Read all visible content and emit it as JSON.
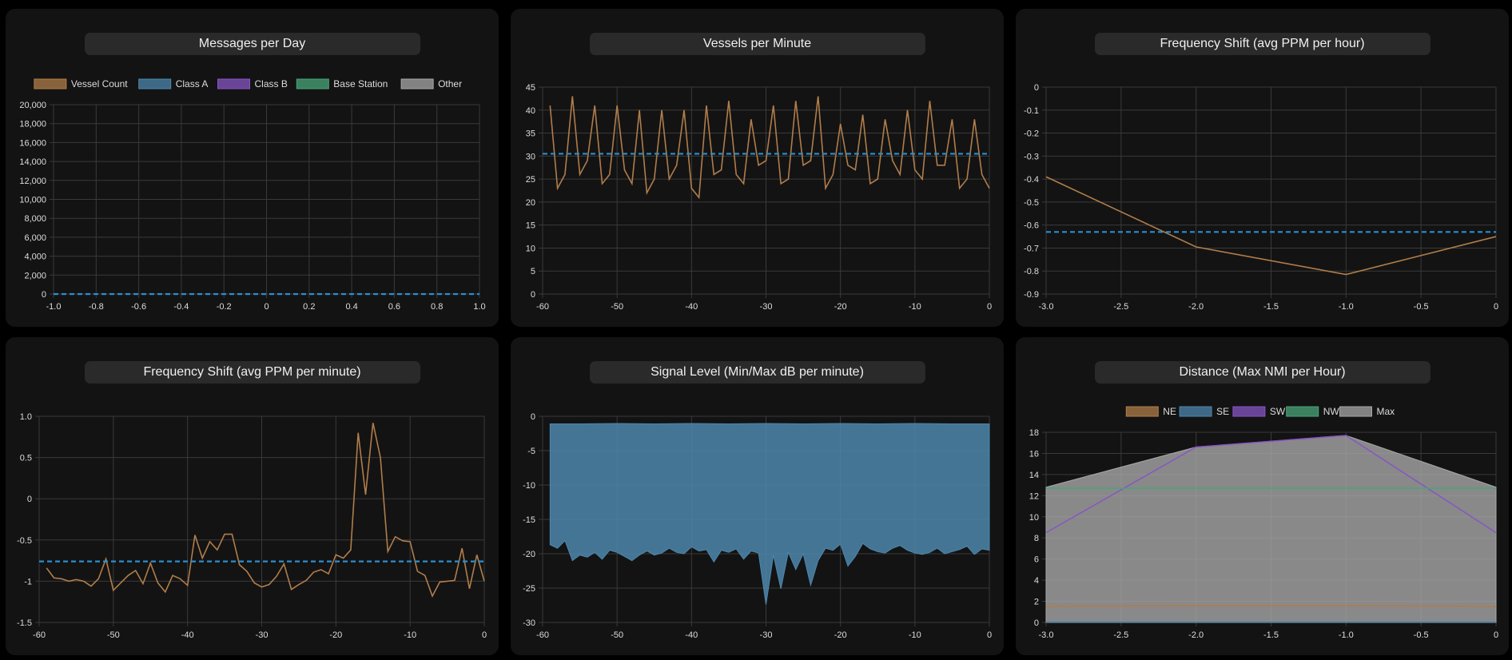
{
  "colors": {
    "bg": "#000000",
    "card": "#131313",
    "pill": "#2a2a2a",
    "grid": "#3a3a3a",
    "axis": "#555555",
    "tick": "#dddddd",
    "orange": "#b07d4a",
    "blue": "#4d87ad",
    "purple": "#8855c4",
    "green": "#4aa57a",
    "grey": "#a8a8a8",
    "dash": "#2a8fd0"
  },
  "charts": [
    {
      "title": "Messages per Day",
      "chart_data": {
        "type": "line",
        "legend": {
          "position": "top",
          "entries": [
            {
              "label": "Vessel Count",
              "color": "#b07d4a"
            },
            {
              "label": "Class A",
              "color": "#4d87ad"
            },
            {
              "label": "Class B",
              "color": "#8855c4"
            },
            {
              "label": "Base Station",
              "color": "#4aa57a"
            },
            {
              "label": "Other",
              "color": "#a8a8a8"
            }
          ]
        },
        "xlim": [
          -1.0,
          1.0
        ],
        "xticks": [
          "-1.0",
          "-0.8",
          "-0.6",
          "-0.4",
          "-0.2",
          "0",
          "0.2",
          "0.4",
          "0.6",
          "0.8",
          "1.0"
        ],
        "ylim": [
          0,
          20000
        ],
        "yticks": [
          "0",
          "2,000",
          "4,000",
          "6,000",
          "8,000",
          "10,000",
          "12,000",
          "14,000",
          "16,000",
          "18,000",
          "20,000"
        ],
        "average": 0,
        "series": []
      }
    },
    {
      "title": "Vessels per Minute",
      "chart_data": {
        "type": "line",
        "xlim": [
          -60,
          0
        ],
        "xticks": [
          "-60",
          "-50",
          "-40",
          "-30",
          "-20",
          "-10",
          "0"
        ],
        "ylim": [
          0,
          45
        ],
        "yticks": [
          "0",
          "5",
          "10",
          "15",
          "20",
          "25",
          "30",
          "35",
          "40",
          "45"
        ],
        "average": 30.5,
        "series": [
          {
            "color": "#b07d4a",
            "x": [
              -59,
              -58,
              -57,
              -56,
              -55,
              -54,
              -53,
              -52,
              -51,
              -50,
              -49,
              -48,
              -47,
              -46,
              -45,
              -44,
              -43,
              -42,
              -41,
              -40,
              -39,
              -38,
              -37,
              -36,
              -35,
              -34,
              -33,
              -32,
              -31,
              -30,
              -29,
              -28,
              -27,
              -26,
              -25,
              -24,
              -23,
              -22,
              -21,
              -20,
              -19,
              -18,
              -17,
              -16,
              -15,
              -14,
              -13,
              -12,
              -11,
              -10,
              -9,
              -8,
              -7,
              -6,
              -5,
              -4,
              -3,
              -2,
              -1,
              0
            ],
            "y": [
              41,
              23,
              26,
              43,
              26,
              29,
              41,
              24,
              26,
              41,
              27,
              24,
              40,
              22,
              25,
              40,
              25,
              28,
              40,
              23,
              21,
              41,
              26,
              27,
              42,
              26,
              24,
              38,
              28,
              29,
              41,
              24,
              25,
              42,
              28,
              29,
              43,
              23,
              26,
              37,
              28,
              27,
              39,
              24,
              25,
              38,
              29,
              26,
              40,
              27,
              25,
              42,
              28,
              28,
              38,
              23,
              25,
              38,
              26,
              23
            ]
          }
        ]
      }
    },
    {
      "title": "Frequency Shift (avg PPM per hour)",
      "chart_data": {
        "type": "line",
        "xlim": [
          -3.0,
          0
        ],
        "xticks": [
          "-3.0",
          "-2.5",
          "-2.0",
          "-1.5",
          "-1.0",
          "-0.5",
          "0"
        ],
        "ylim": [
          -0.9,
          0
        ],
        "yticks": [
          "-0.9",
          "-0.8",
          "-0.7",
          "-0.6",
          "-0.5",
          "-0.4",
          "-0.3",
          "-0.2",
          "-0.1",
          "0"
        ],
        "average": -0.63,
        "series": [
          {
            "color": "#b07d4a",
            "x": [
              -3,
              -2,
              -1,
              0
            ],
            "y": [
              -0.39,
              -0.695,
              -0.815,
              -0.65
            ]
          }
        ]
      }
    },
    {
      "title": "Frequency Shift (avg PPM per minute)",
      "chart_data": {
        "type": "line",
        "xlim": [
          -60,
          0
        ],
        "xticks": [
          "-60",
          "-50",
          "-40",
          "-30",
          "-20",
          "-10",
          "0"
        ],
        "ylim": [
          -1.5,
          1.0
        ],
        "yticks": [
          "-1.5",
          "-1",
          "-0.5",
          "0",
          "0.5",
          "1.0"
        ],
        "average": -0.76,
        "series": [
          {
            "color": "#b07d4a",
            "x": [
              -59,
              -58,
              -57,
              -56,
              -55,
              -54,
              -53,
              -52,
              -51,
              -50,
              -49,
              -48,
              -47,
              -46,
              -45,
              -44,
              -43,
              -42,
              -41,
              -40,
              -39,
              -38,
              -37,
              -36,
              -35,
              -34,
              -33,
              -32,
              -31,
              -30,
              -29,
              -28,
              -27,
              -26,
              -25,
              -24,
              -23,
              -22,
              -21,
              -20,
              -19,
              -18,
              -17,
              -16,
              -15,
              -14,
              -13,
              -12,
              -11,
              -10,
              -9,
              -8,
              -7,
              -6,
              -5,
              -4,
              -3,
              -2,
              -1,
              0
            ],
            "y": [
              -0.84,
              -0.96,
              -0.97,
              -1.0,
              -0.98,
              -1.0,
              -1.06,
              -0.97,
              -0.73,
              -1.11,
              -1.02,
              -0.93,
              -0.87,
              -1.03,
              -0.78,
              -1.02,
              -1.13,
              -0.93,
              -0.97,
              -1.05,
              -0.44,
              -0.72,
              -0.52,
              -0.62,
              -0.43,
              -0.43,
              -0.8,
              -0.88,
              -1.02,
              -1.07,
              -1.04,
              -0.94,
              -0.79,
              -1.1,
              -1.04,
              -0.99,
              -0.89,
              -0.86,
              -0.91,
              -0.68,
              -0.72,
              -0.62,
              0.8,
              0.05,
              0.92,
              0.5,
              -0.64,
              -0.46,
              -0.51,
              -0.52,
              -0.88,
              -0.93,
              -1.18,
              -1.01,
              -1.0,
              -0.99,
              -0.6,
              -1.09,
              -0.68,
              -1.0
            ]
          }
        ]
      }
    },
    {
      "title": "Signal Level (Min/Max dB per minute)",
      "chart_data": {
        "type": "area",
        "xlim": [
          -60,
          0
        ],
        "xticks": [
          "-60",
          "-50",
          "-40",
          "-30",
          "-20",
          "-10",
          "0"
        ],
        "ylim": [
          -30,
          0
        ],
        "yticks": [
          "-30",
          "-25",
          "-20",
          "-15",
          "-10",
          "-5",
          "0"
        ],
        "series": [
          {
            "name": "Max",
            "color": "#4d87ad",
            "x": [
              -59,
              -55,
              -50,
              -45,
              -40,
              -35,
              -30,
              -25,
              -20,
              -15,
              -10,
              -5,
              0
            ],
            "y": [
              -1.1,
              -1.1,
              -1.05,
              -1.1,
              -1.05,
              -1.1,
              -1.05,
              -1.1,
              -1.05,
              -1.1,
              -1.05,
              -1.1,
              -1.1
            ]
          },
          {
            "name": "Min",
            "color": "#4d87ad",
            "x": [
              -59,
              -58,
              -57,
              -56,
              -55,
              -54,
              -53,
              -52,
              -51,
              -50,
              -49,
              -48,
              -47,
              -46,
              -45,
              -44,
              -43,
              -42,
              -41,
              -40,
              -39,
              -38,
              -37,
              -36,
              -35,
              -34,
              -33,
              -32,
              -31,
              -30,
              -29,
              -28,
              -27,
              -26,
              -25,
              -24,
              -23,
              -22,
              -21,
              -20,
              -19,
              -18,
              -17,
              -16,
              -15,
              -14,
              -13,
              -12,
              -11,
              -10,
              -9,
              -8,
              -7,
              -6,
              -5,
              -4,
              -3,
              -2,
              -1,
              0
            ],
            "y": [
              -18.7,
              -19.2,
              -18.1,
              -21.0,
              -20.2,
              -20.5,
              -19.8,
              -20.8,
              -19.5,
              -19.8,
              -20.4,
              -21.0,
              -20.2,
              -19.6,
              -20.2,
              -19.9,
              -19.2,
              -19.8,
              -20.0,
              -19.0,
              -19.6,
              -19.4,
              -21.2,
              -19.5,
              -19.8,
              -19.3,
              -20.8,
              -19.6,
              -19.9,
              -27.4,
              -20.2,
              -25.1,
              -19.8,
              -22.3,
              -20.0,
              -24.6,
              -21.0,
              -19.2,
              -19.5,
              -18.6,
              -21.8,
              -20.4,
              -18.5,
              -19.3,
              -19.7,
              -19.9,
              -19.2,
              -18.8,
              -19.5,
              -19.9,
              -20.1,
              -19.8,
              -19.2,
              -20.0,
              -19.7,
              -19.4,
              -18.9,
              -20.1,
              -19.3,
              -19.5
            ]
          }
        ]
      }
    },
    {
      "title": "Distance (Max NMI per Hour)",
      "chart_data": {
        "type": "area",
        "legend": {
          "position": "top",
          "entries": [
            {
              "label": "NE",
              "color": "#b07d4a"
            },
            {
              "label": "SE",
              "color": "#4d87ad"
            },
            {
              "label": "SW",
              "color": "#8855c4"
            },
            {
              "label": "NW",
              "color": "#4aa57a"
            },
            {
              "label": "Max",
              "color": "#a8a8a8"
            }
          ]
        },
        "xlim": [
          -3.0,
          0
        ],
        "xticks": [
          "-3.0",
          "-2.5",
          "-2.0",
          "-1.5",
          "-1.0",
          "-0.5",
          "0"
        ],
        "ylim": [
          0,
          18
        ],
        "yticks": [
          "0",
          "2",
          "4",
          "6",
          "8",
          "10",
          "12",
          "14",
          "16",
          "18"
        ],
        "series": [
          {
            "name": "Max",
            "color": "#a8a8a8",
            "x": [
              -3,
              -2,
              -1,
              0
            ],
            "y": [
              12.8,
              16.6,
              17.7,
              12.8
            ]
          },
          {
            "name": "NE",
            "color": "#b07d4a",
            "x": [
              -3,
              -2,
              -1,
              0
            ],
            "y": [
              1.5,
              1.6,
              1.6,
              1.5
            ]
          },
          {
            "name": "SE",
            "color": "#4d87ad",
            "x": [
              -3,
              -2,
              -1,
              0
            ],
            "y": [
              0.05,
              0.05,
              0.05,
              0.05
            ]
          },
          {
            "name": "SW",
            "color": "#8855c4",
            "x": [
              -3,
              -2,
              -1,
              0
            ],
            "y": [
              8.5,
              16.6,
              17.7,
              8.5
            ]
          },
          {
            "name": "NW",
            "color": "#4aa57a",
            "x": [
              -3,
              -2,
              -1,
              0
            ],
            "y": [
              12.7,
              12.7,
              12.7,
              12.7
            ]
          }
        ]
      }
    }
  ]
}
